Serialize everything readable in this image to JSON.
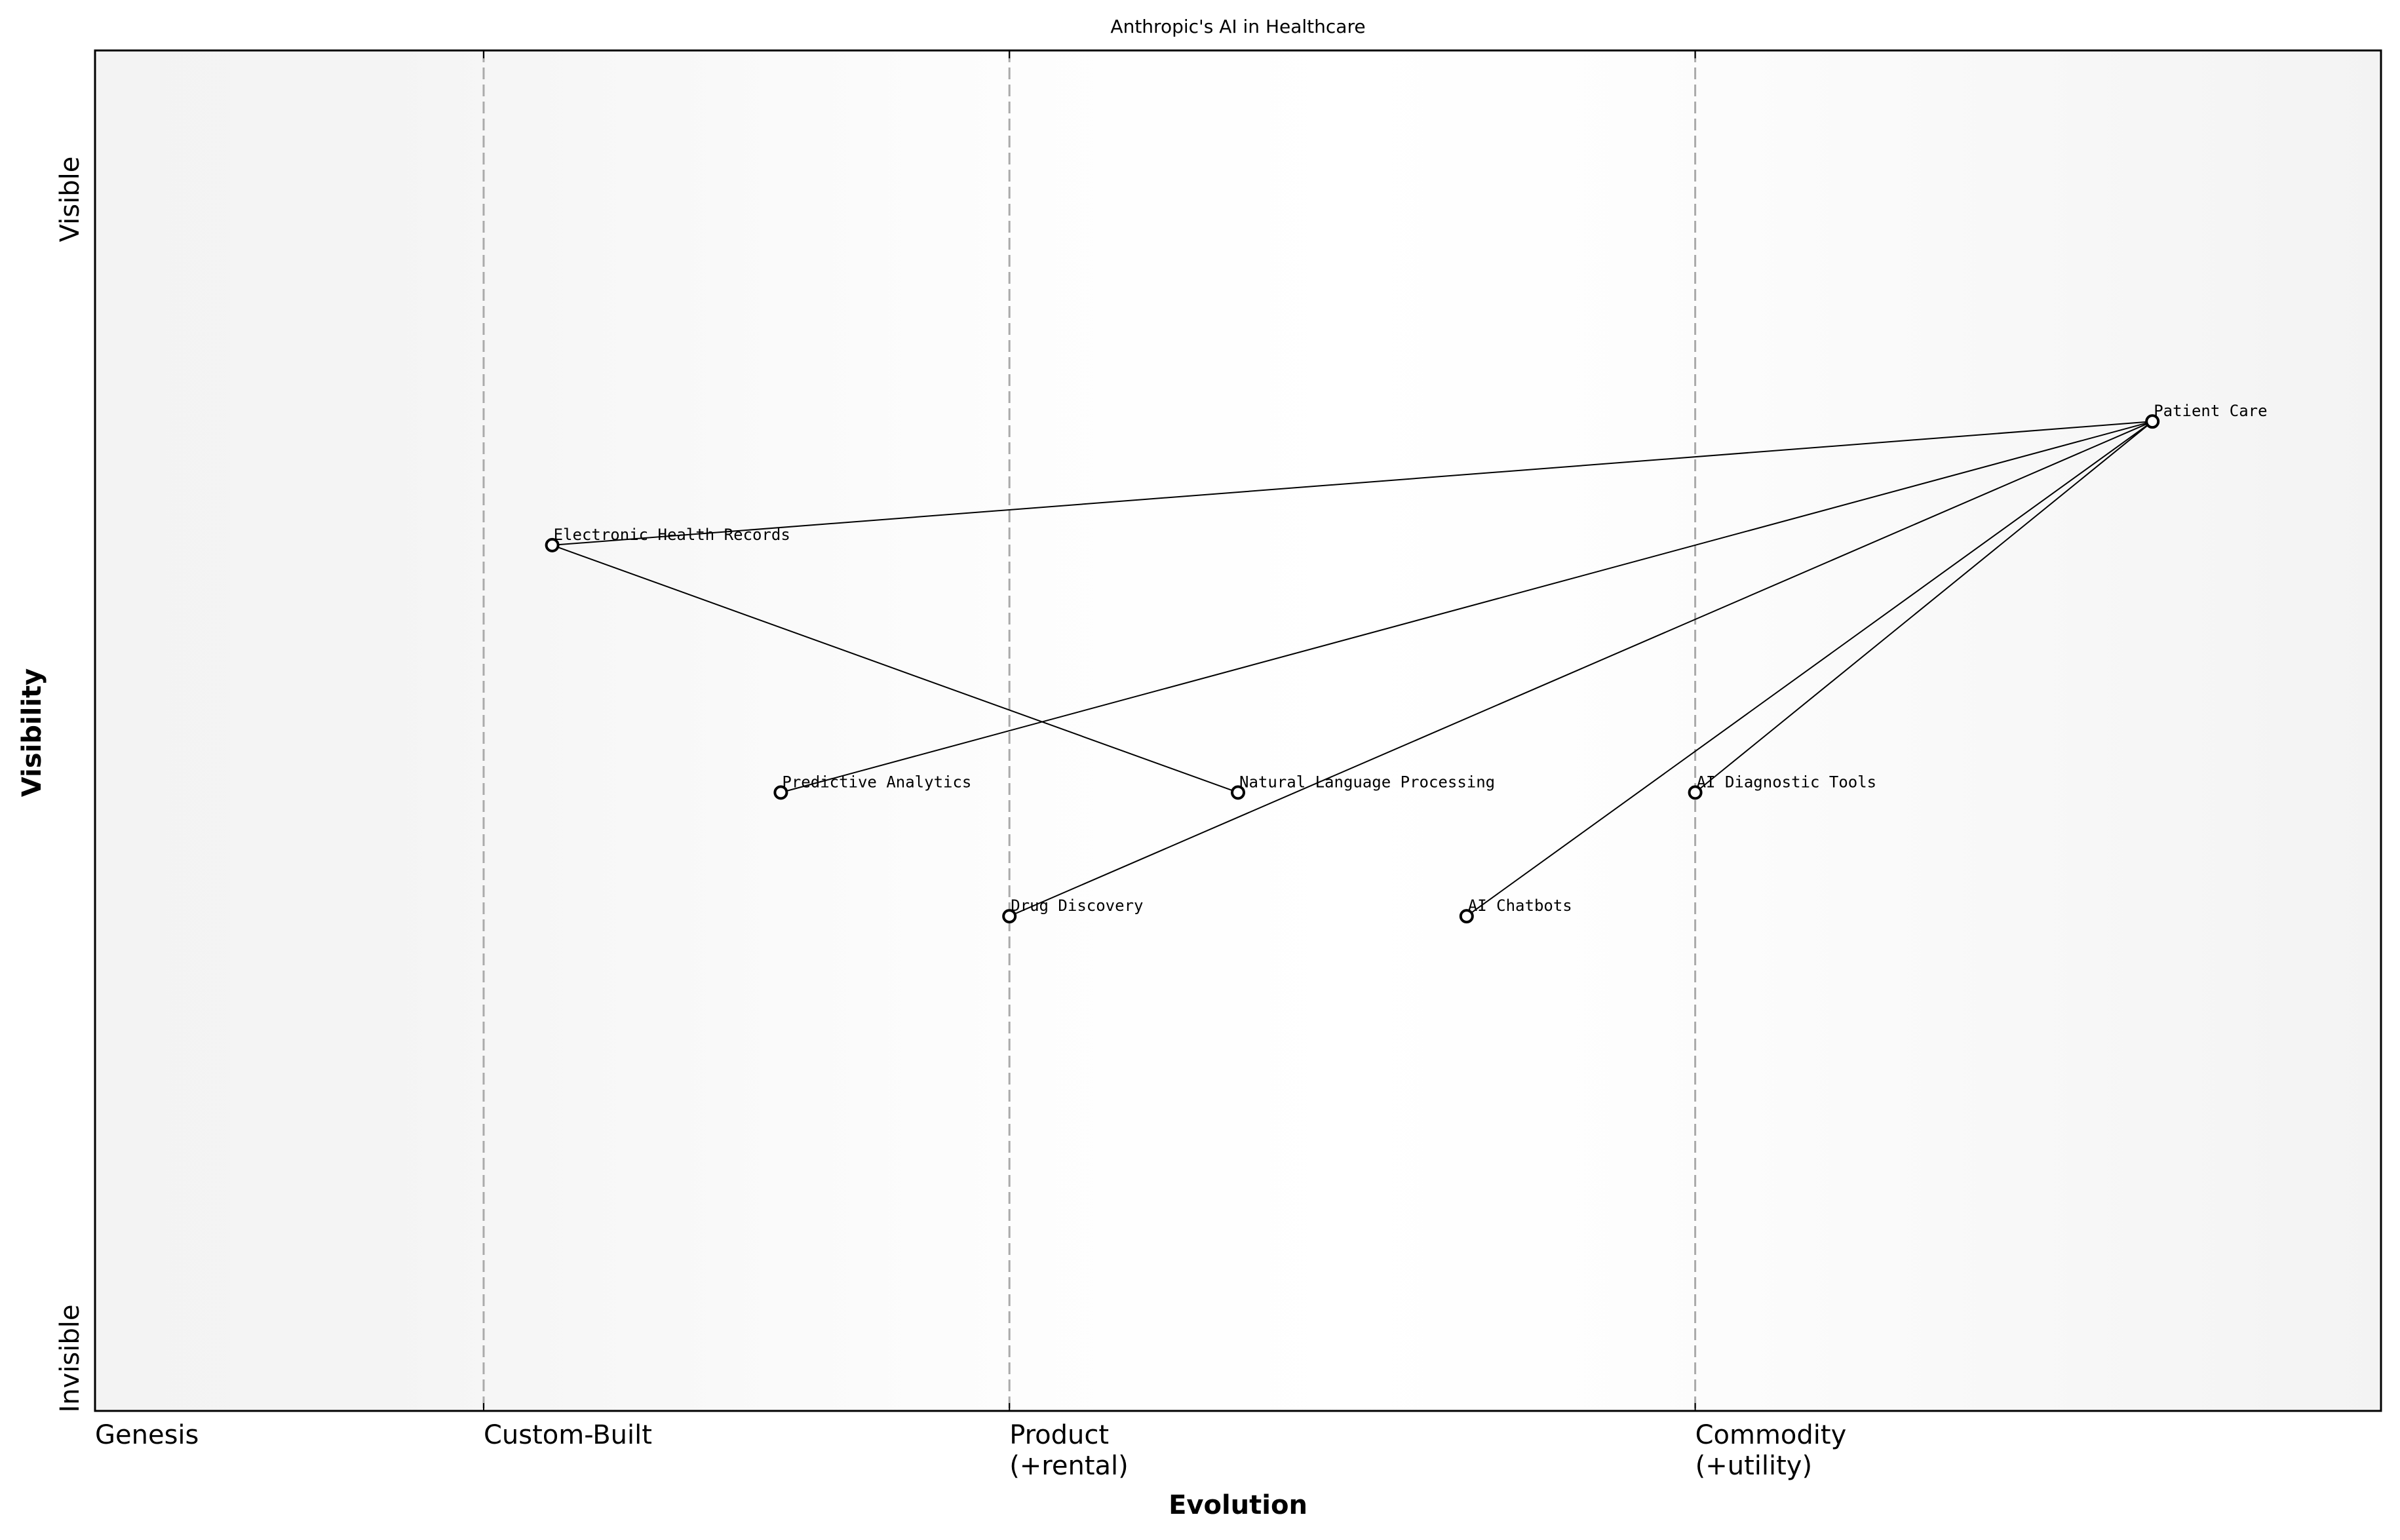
{
  "chart_data": {
    "type": "scatter",
    "subtype": "wardley-map",
    "title": "Anthropic's AI in Healthcare",
    "xlabel": "Evolution",
    "ylabel": "Visibility",
    "xlim": [
      0,
      1
    ],
    "ylim": [
      0,
      1.1
    ],
    "stages": [
      {
        "label": "Genesis",
        "x": 0.0
      },
      {
        "label": "Custom-Built",
        "x": 0.17
      },
      {
        "label": "Product\n(+rental)",
        "x": 0.4
      },
      {
        "label": "Commodity\n(+utility)",
        "x": 0.7
      }
    ],
    "y_labels": {
      "top": "Visible",
      "bottom": "Invisible"
    },
    "components": [
      {
        "name": "Patient Care",
        "x": 0.9,
        "y": 0.8
      },
      {
        "name": "Electronic Health Records",
        "x": 0.2,
        "y": 0.7
      },
      {
        "name": "Predictive Analytics",
        "x": 0.3,
        "y": 0.5
      },
      {
        "name": "Natural Language Processing",
        "x": 0.5,
        "y": 0.5
      },
      {
        "name": "AI Diagnostic Tools",
        "x": 0.7,
        "y": 0.5
      },
      {
        "name": "Drug Discovery",
        "x": 0.4,
        "y": 0.4
      },
      {
        "name": "AI Chatbots",
        "x": 0.6,
        "y": 0.4
      }
    ],
    "links": [
      [
        "Patient Care",
        "Electronic Health Records"
      ],
      [
        "Electronic Health Records",
        "Natural Language Processing"
      ],
      [
        "Patient Care",
        "Predictive Analytics"
      ],
      [
        "Patient Care",
        "Drug Discovery"
      ],
      [
        "Patient Care",
        "AI Chatbots"
      ],
      [
        "Patient Care",
        "AI Diagnostic Tools"
      ]
    ],
    "colors": {
      "line": "#000000",
      "stage_divider": "#aaaaaa",
      "edge_bg": "#f4f4f4",
      "mid_bg": "#ffffff"
    }
  }
}
